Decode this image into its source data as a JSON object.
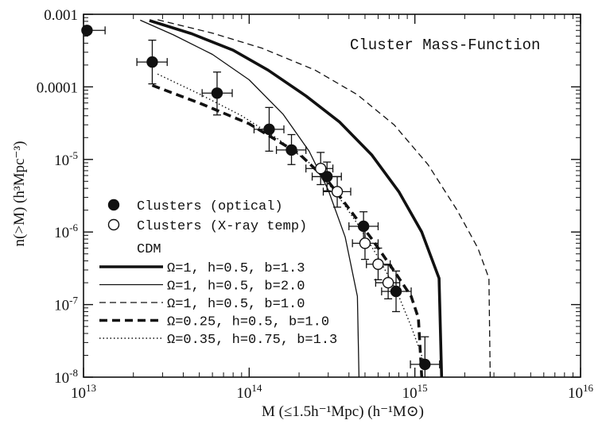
{
  "chart_data": {
    "type": "scatter",
    "title": "Cluster Mass-Function",
    "xlabel": "M (≤1.5h⁻¹Mpc) (h⁻¹M⊙)",
    "ylabel": "n(>M) (h³Mpc⁻³)",
    "xscale": "log",
    "yscale": "log",
    "xlim": [
      10000000000000.0,
      1e+16
    ],
    "ylim": [
      1e-08,
      0.001
    ],
    "x_ticks": [
      {
        "value": 10000000000000.0,
        "label": "10",
        "exp": "13"
      },
      {
        "value": 100000000000000.0,
        "label": "10",
        "exp": "14"
      },
      {
        "value": 1000000000000000.0,
        "label": "10",
        "exp": "15"
      },
      {
        "value": 1e+16,
        "label": "10",
        "exp": "16"
      }
    ],
    "y_ticks": [
      {
        "value": 0.001,
        "label": "0.001",
        "exp": ""
      },
      {
        "value": 0.0001,
        "label": "0.0001",
        "exp": ""
      },
      {
        "value": 1e-05,
        "label": "10",
        "exp": "-5"
      },
      {
        "value": 1e-06,
        "label": "10",
        "exp": "-6"
      },
      {
        "value": 1e-07,
        "label": "10",
        "exp": "-7"
      },
      {
        "value": 1e-08,
        "label": "10",
        "exp": "-8"
      }
    ],
    "legend_position": "lower-left",
    "legend_heading": "CDM",
    "series": [
      {
        "name": "Clusters (optical)",
        "marker": "filled-circle",
        "points": [
          {
            "x": 10500000000000.0,
            "y": 0.0006,
            "xerr": [
              10500000000000.0,
              13500000000000.0
            ],
            "yerr": null
          },
          {
            "x": 26000000000000.0,
            "y": 0.00022,
            "xerr": [
              21000000000000.0,
              32000000000000.0
            ],
            "yerr": [
              0.00011,
              0.00044
            ]
          },
          {
            "x": 64000000000000.0,
            "y": 8.2e-05,
            "xerr": [
              52000000000000.0,
              79000000000000.0
            ],
            "yerr": [
              4.1e-05,
              0.00016
            ]
          },
          {
            "x": 132000000000000.0,
            "y": 2.6e-05,
            "xerr": [
              107000000000000.0,
              162000000000000.0
            ],
            "yerr": [
              1.3e-05,
              5.2e-05
            ]
          },
          {
            "x": 180000000000000.0,
            "y": 1.35e-05,
            "xerr": [
              146000000000000.0,
              220000000000000.0
            ],
            "yerr": [
              8.5e-06,
              2.2e-05
            ]
          },
          {
            "x": 295000000000000.0,
            "y": 5.8e-06,
            "xerr": [
              240000000000000.0,
              360000000000000.0
            ],
            "yerr": [
              3.7e-06,
              9.2e-06
            ]
          },
          {
            "x": 490000000000000.0,
            "y": 1.2e-06,
            "xerr": [
              400000000000000.0,
              600000000000000.0
            ],
            "yerr": [
              7.4e-07,
              1.9e-06
            ]
          },
          {
            "x": 770000000000000.0,
            "y": 1.52e-07,
            "xerr": [
              630000000000000.0,
              950000000000000.0
            ],
            "yerr": [
              8e-08,
              2.9e-07
            ]
          },
          {
            "x": 1150000000000000.0,
            "y": 1.5e-08,
            "xerr": [
              940000000000000.0,
              1410000000000000.0
            ],
            "yerr": [
              1e-08,
              3.6e-08
            ]
          }
        ]
      },
      {
        "name": "Clusters (X-ray temp)",
        "marker": "open-circle",
        "points": [
          {
            "x": 270000000000000.0,
            "y": 7.5e-06,
            "xerr": [
              220000000000000.0,
              320000000000000.0
            ],
            "yerr": [
              4.5e-06,
              1.25e-05
            ]
          },
          {
            "x": 340000000000000.0,
            "y": 3.6e-06,
            "xerr": [
              280000000000000.0,
              410000000000000.0
            ],
            "yerr": [
              2.2e-06,
              5.8e-06
            ]
          },
          {
            "x": 500000000000000.0,
            "y": 7e-07,
            "xerr": [
              420000000000000.0,
              600000000000000.0
            ],
            "yerr": [
              4.2e-07,
              1.15e-06
            ]
          },
          {
            "x": 600000000000000.0,
            "y": 3.6e-07,
            "xerr": [
              510000000000000.0,
              710000000000000.0
            ],
            "yerr": [
              2.2e-07,
              6e-07
            ]
          },
          {
            "x": 690000000000000.0,
            "y": 2e-07,
            "xerr": [
              580000000000000.0,
              810000000000000.0
            ],
            "yerr": [
              1.2e-07,
              3.5e-07
            ]
          }
        ]
      },
      {
        "name": "Ω=1, h=0.5, b=1.3",
        "style": "thick-solid",
        "points": [
          [
            25000000000000.0,
            0.00082
          ],
          [
            45000000000000.0,
            0.00054
          ],
          [
            80000000000000.0,
            0.00032
          ],
          [
            130000000000000.0,
            0.00017
          ],
          [
            220000000000000.0,
            7.5e-05
          ],
          [
            350000000000000.0,
            3.3e-05
          ],
          [
            550000000000000.0,
            1.15e-05
          ],
          [
            800000000000000.0,
            3.6e-06
          ],
          [
            1100000000000000.0,
            1e-06
          ],
          [
            1400000000000000.0,
            2.3e-07
          ],
          [
            1450000000000000.0,
            1e-08
          ]
        ]
      },
      {
        "name": "Ω=1, h=0.5, b=2.0",
        "style": "thin-solid",
        "points": [
          [
            22000000000000.0,
            0.00083
          ],
          [
            35000000000000.0,
            0.00052
          ],
          [
            60000000000000.0,
            0.00028
          ],
          [
            100000000000000.0,
            0.000125
          ],
          [
            160000000000000.0,
            4.2e-05
          ],
          [
            230000000000000.0,
            1.3e-05
          ],
          [
            300000000000000.0,
            3.8e-06
          ],
          [
            380000000000000.0,
            8.5e-07
          ],
          [
            450000000000000.0,
            1.3e-07
          ],
          [
            460000000000000.0,
            1e-08
          ]
        ]
      },
      {
        "name": "Ω=1, h=0.5, b=1.0",
        "style": "thin-dashed",
        "points": [
          [
            28000000000000.0,
            0.00084
          ],
          [
            60000000000000.0,
            0.00055
          ],
          [
            120000000000000.0,
            0.00034
          ],
          [
            250000000000000.0,
            0.00017
          ],
          [
            450000000000000.0,
            7.8e-05
          ],
          [
            750000000000000.0,
            3e-05
          ],
          [
            1200000000000000.0,
            8.5e-06
          ],
          [
            1800000000000000.0,
            2e-06
          ],
          [
            2400000000000000.0,
            6e-07
          ],
          [
            2800000000000000.0,
            2.3e-07
          ],
          [
            2850000000000000.0,
            1e-08
          ]
        ]
      },
      {
        "name": "Ω=0.25, h=0.5, b=1.0",
        "style": "thick-dashed",
        "points": [
          [
            26000000000000.0,
            0.000105
          ],
          [
            50000000000000.0,
            6e-05
          ],
          [
            100000000000000.0,
            3.1e-05
          ],
          [
            200000000000000.0,
            1.2e-05
          ],
          [
            300000000000000.0,
            5e-06
          ],
          [
            400000000000000.0,
            2.1e-06
          ],
          [
            550000000000000.0,
            8e-07
          ],
          [
            750000000000000.0,
            2.9e-07
          ],
          [
            950000000000000.0,
            1.3e-07
          ],
          [
            1050000000000000.0,
            6.5e-08
          ],
          [
            1100000000000000.0,
            1e-08
          ]
        ]
      },
      {
        "name": "Ω=0.35, h=0.75, b=1.3",
        "style": "dotted",
        "points": [
          [
            28000000000000.0,
            0.00015
          ],
          [
            50000000000000.0,
            8e-05
          ],
          [
            90000000000000.0,
            4e-05
          ],
          [
            150000000000000.0,
            1.9e-05
          ],
          [
            230000000000000.0,
            9e-06
          ],
          [
            330000000000000.0,
            3.6e-06
          ],
          [
            450000000000000.0,
            1.3e-06
          ],
          [
            600000000000000.0,
            4.5e-07
          ],
          [
            780000000000000.0,
            1.5e-07
          ],
          [
            950000000000000.0,
            5e-08
          ],
          [
            1150000000000000.0,
            1.5e-08
          ]
        ]
      }
    ]
  }
}
